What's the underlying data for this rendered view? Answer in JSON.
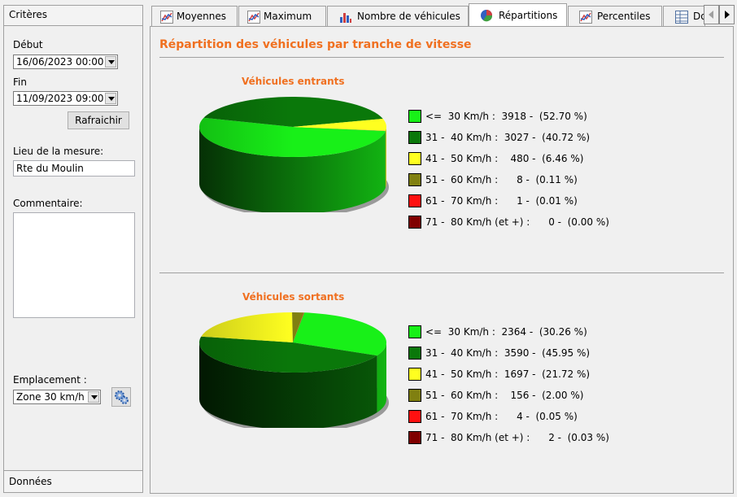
{
  "sidebar": {
    "header": "Critères",
    "footer": "Données",
    "debut_label": "Début",
    "debut_value": "16/06/2023 00:00",
    "fin_label": "Fin",
    "fin_value": "11/09/2023 09:00",
    "refresh_label": "Rafraichir",
    "lieu_label": "Lieu de la mesure:",
    "lieu_value": "Rte du Moulin",
    "commentaire_label": "Commentaire:",
    "commentaire_value": "",
    "emplacement_label": "Emplacement :",
    "emplacement_value": "Zone 30 km/h"
  },
  "tabs": [
    {
      "label": "Moyennes",
      "icon": "line-chart-icon"
    },
    {
      "label": "Maximum",
      "icon": "line-chart-icon"
    },
    {
      "label": "Nombre de véhicules",
      "icon": "bar-chart-icon"
    },
    {
      "label": "Répartitions",
      "icon": "pie-chart-icon",
      "active": true
    },
    {
      "label": "Percentiles",
      "icon": "line-chart-icon"
    },
    {
      "label": "Do",
      "icon": "table-icon"
    }
  ],
  "page_title": "Répartition des véhicules par tranche de vitesse",
  "colors": {
    "accent": "#f07020",
    "slices": [
      "#18f018",
      "#0a780a",
      "#ffff20",
      "#808010",
      "#ff1010",
      "#800000"
    ]
  },
  "chart_data": [
    {
      "type": "pie",
      "title": "Véhicules entrants",
      "legend": "right",
      "series": [
        {
          "label": "<=  30 Km/h :",
          "count": 3918,
          "percent": 52.7
        },
        {
          "label": "31 -  40 Km/h :",
          "count": 3027,
          "percent": 40.72
        },
        {
          "label": "41 -  50 Km/h :",
          "count": 480,
          "percent": 6.46
        },
        {
          "label": "51 -  60 Km/h :",
          "count": 8,
          "percent": 0.11
        },
        {
          "label": "61 -  70 Km/h :",
          "count": 1,
          "percent": 0.01
        },
        {
          "label": "71 -  80 Km/h (et +) :",
          "count": 0,
          "percent": 0.0
        }
      ],
      "legend_lines": [
        "<=  30 Km/h :  3918 -  (52.70 %)",
        "31 -  40 Km/h :  3027 -  (40.72 %)",
        "41 -  50 Km/h :    480 -  (6.46 %)",
        "51 -  60 Km/h :      8 -  (0.11 %)",
        "61 -  70 Km/h :      1 -  (0.01 %)",
        "71 -  80 Km/h (et +) :      0 -  (0.00 %)"
      ]
    },
    {
      "type": "pie",
      "title": "Véhicules sortants",
      "legend": "right",
      "series": [
        {
          "label": "<=  30 Km/h :",
          "count": 2364,
          "percent": 30.26
        },
        {
          "label": "31 -  40 Km/h :",
          "count": 3590,
          "percent": 45.95
        },
        {
          "label": "41 -  50 Km/h :",
          "count": 1697,
          "percent": 21.72
        },
        {
          "label": "51 -  60 Km/h :",
          "count": 156,
          "percent": 2.0
        },
        {
          "label": "61 -  70 Km/h :",
          "count": 4,
          "percent": 0.05
        },
        {
          "label": "71 -  80 Km/h (et +) :",
          "count": 2,
          "percent": 0.03
        }
      ],
      "legend_lines": [
        "<=  30 Km/h :  2364 -  (30.26 %)",
        "31 -  40 Km/h :  3590 -  (45.95 %)",
        "41 -  50 Km/h :  1697 -  (21.72 %)",
        "51 -  60 Km/h :    156 -  (2.00 %)",
        "61 -  70 Km/h :      4 -  (0.05 %)",
        "71 -  80 Km/h (et +) :      2 -  (0.03 %)"
      ]
    }
  ]
}
